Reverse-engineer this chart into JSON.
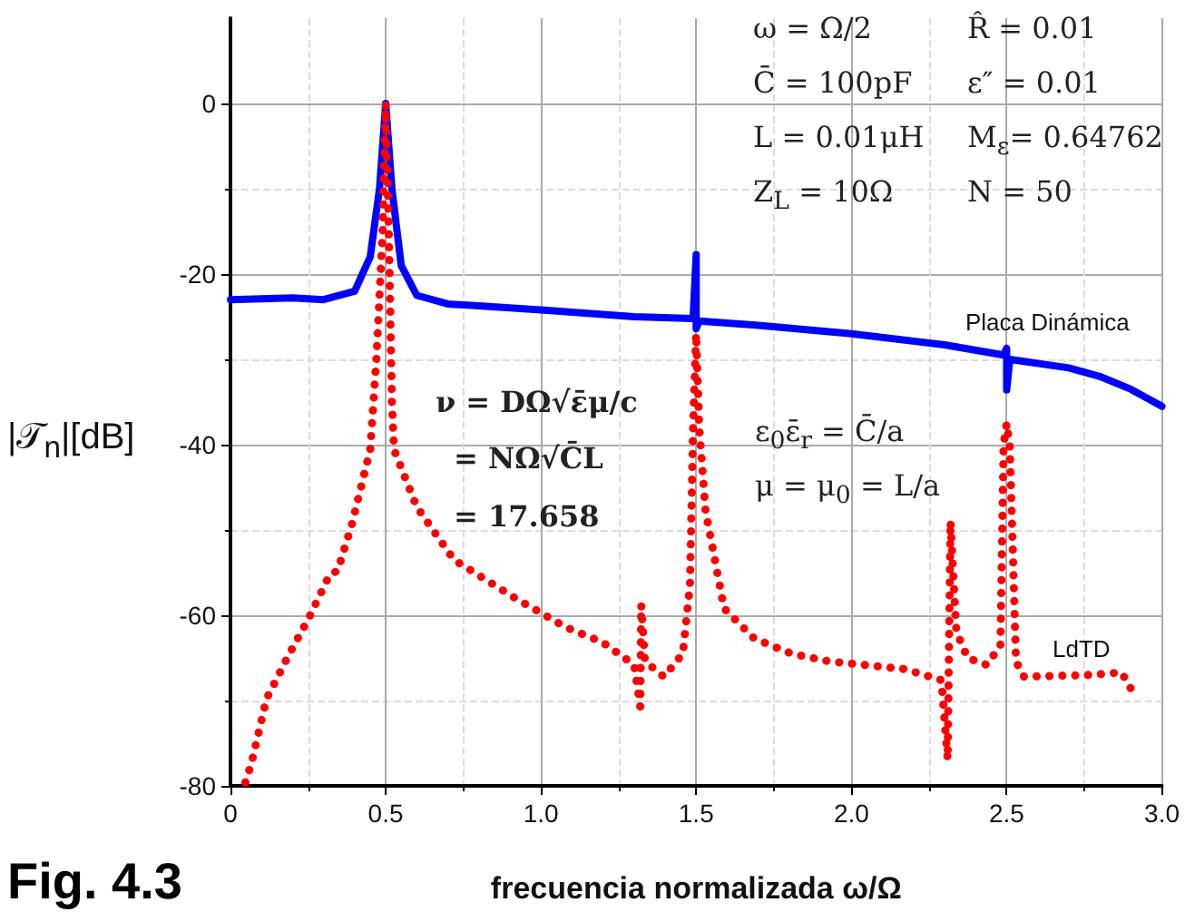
{
  "chart_data": {
    "type": "line",
    "xlabel": "frecuencia normalizada ω/Ω",
    "ylabel": "|𝒯$_{n}$|[dB]",
    "xlim": [
      0,
      3.0
    ],
    "xticks": [
      0,
      0.5,
      {
        "value": 1,
        "label": "1.0"
      },
      1.5,
      {
        "value": 2,
        "label": "2.0"
      },
      2.5,
      {
        "value": 3,
        "label": "3.0"
      }
    ],
    "ylim": [
      -80,
      10
    ],
    "yticks": [
      -80,
      -60,
      -40,
      -20,
      0
    ],
    "grid": true,
    "legend": false,
    "series": [
      {
        "name": "Placa Dinámica",
        "color": "#0000ff",
        "line_style": "solid",
        "x": [
          0,
          0.2,
          0.3,
          0.4,
          0.45,
          0.48,
          0.5,
          0.52,
          0.55,
          0.6,
          0.7,
          1.0,
          1.3,
          1.49,
          1.5,
          1.5,
          1.51,
          1.7,
          2.0,
          2.3,
          2.49,
          2.5,
          2.5,
          2.51,
          2.7,
          2.8,
          2.9,
          3.0
        ],
        "values": [
          -23,
          -22.8,
          -23,
          -22,
          -18,
          -10,
          0,
          -10,
          -19,
          -22.5,
          -23.5,
          -24.2,
          -25,
          -25.2,
          -17.7,
          -26.4,
          -25.5,
          -26,
          -27,
          -28.3,
          -29.5,
          -28.7,
          -33.6,
          -30,
          -31,
          -32,
          -33.5,
          -35.5
        ]
      },
      {
        "name": "LdTD",
        "color": "#ff0000",
        "line_style": "dotted",
        "x": [
          0.048,
          0.068,
          0.116,
          0.19,
          0.25,
          0.32,
          0.345,
          0.39,
          0.45,
          0.47,
          0.49,
          0.5,
          0.51,
          0.52,
          0.527,
          0.6,
          0.72,
          0.913,
          1.08,
          1.2,
          1.3,
          1.32,
          1.323,
          1.335,
          1.396,
          1.457,
          1.48,
          1.49,
          1.5,
          1.51,
          1.53,
          1.59,
          1.686,
          1.807,
          1.928,
          2.17,
          2.29,
          2.31,
          2.319,
          2.338,
          2.374,
          2.435,
          2.48,
          2.49,
          2.5,
          2.51,
          2.53,
          2.556,
          2.77,
          2.87,
          2.913
        ],
        "values": [
          -79.6,
          -77.3,
          -69.8,
          -64.5,
          -60.5,
          -55.2,
          -54.8,
          -49.5,
          -40.6,
          -30,
          -15,
          0,
          -15,
          -35,
          -40.6,
          -47.3,
          -53.5,
          -57.9,
          -61.4,
          -63.2,
          -65.8,
          -70.7,
          -58.8,
          -65.4,
          -67.2,
          -64.5,
          -56.5,
          -38,
          -27,
          -38,
          -47.7,
          -59.2,
          -62.7,
          -64.5,
          -65.4,
          -66.3,
          -67.6,
          -76.9,
          -49,
          -61.9,
          -65,
          -65.8,
          -63.6,
          -40,
          -37.5,
          -40,
          -65.4,
          -67.2,
          -67,
          -66.7,
          -69.4
        ]
      }
    ],
    "annotations": [
      "ω = Ω/2",
      "C̄ = 100pF",
      "L = 0.01μH",
      "Z$_{L}$ = 10Ω",
      "R̂ = 0.01",
      "ε″ = 0.01",
      "M$_{ε}$= 0.64762",
      "N = 50",
      "ν = DΩ√ε̄μ/c",
      "= NΩ√C̄L",
      "= 17.658",
      "ε$_{0}$ε̄$_{r}$ = C̄/a",
      "μ = μ$_{0}$ = L/a",
      "Fig. 4.3"
    ]
  }
}
